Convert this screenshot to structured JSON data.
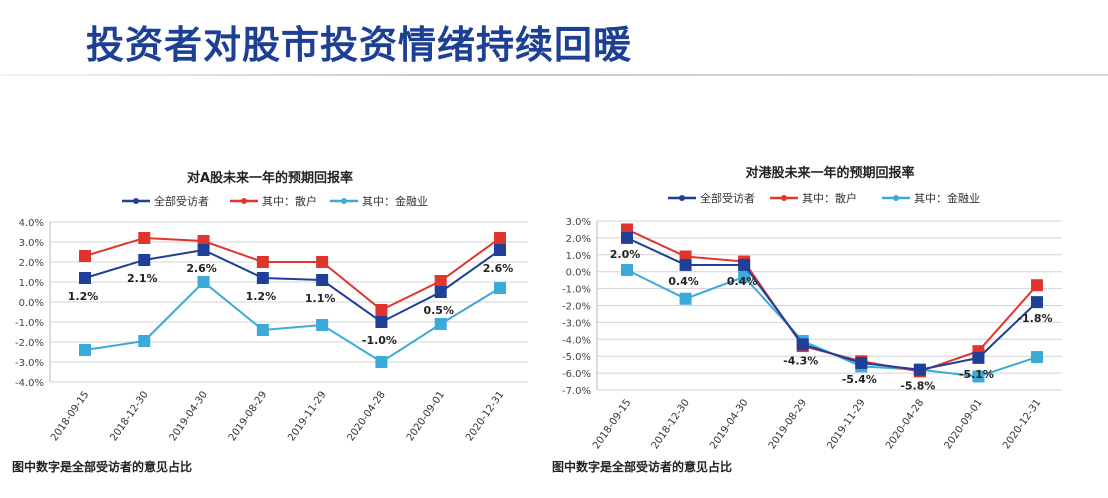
{
  "page_title": "投资者对股市投资情绪持续回暖",
  "chart_data": [
    {
      "type": "line",
      "title": "对A股未来一年的预期回报率",
      "categories": [
        "2018-09-15",
        "2018-12-30",
        "2019-04-30",
        "2019-08-29",
        "2019-11-29",
        "2020-04-28",
        "2020-09-01",
        "2020-12-31"
      ],
      "ylim": [
        -4.0,
        4.0
      ],
      "yticks": [
        "4.0%",
        "3.0%",
        "2.0%",
        "1.0%",
        "0.0%",
        "-1.0%",
        "-2.0%",
        "-3.0%",
        "-4.0%"
      ],
      "grid": true,
      "legend_placement": "top",
      "series": [
        {
          "name": "全部受访者",
          "color": "#1f3f99",
          "values": [
            1.2,
            2.1,
            2.6,
            1.2,
            1.1,
            -1.0,
            0.5,
            2.6
          ]
        },
        {
          "name": "其中：散户",
          "color": "#e0352f",
          "values": [
            2.3,
            3.2,
            3.05,
            2.0,
            2.0,
            -0.4,
            1.05,
            3.2
          ]
        },
        {
          "name": "其中：金融业",
          "color": "#3aaad8",
          "values": [
            -2.4,
            -1.95,
            1.0,
            -1.4,
            -1.15,
            -3.0,
            -1.1,
            0.7
          ]
        }
      ],
      "data_labels": [
        "1.2%",
        "2.1%",
        "2.6%",
        "1.2%",
        "1.1%",
        "-1.0%",
        "0.5%",
        "2.6%"
      ],
      "footnote": "图中数字是全部受访者的意见占比"
    },
    {
      "type": "line",
      "title": "对港股未来一年的预期回报率",
      "categories": [
        "2018-09-15",
        "2018-12-30",
        "2019-04-30",
        "2019-08-29",
        "2019-11-29",
        "2020-04-28",
        "2020-09-01",
        "2020-12-31"
      ],
      "ylim": [
        -7.0,
        3.0
      ],
      "yticks": [
        "3.0%",
        "2.0%",
        "1.0%",
        "0.0%",
        "-1.0%",
        "-2.0%",
        "-3.0%",
        "-4.0%",
        "-5.0%",
        "-6.0%",
        "-7.0%"
      ],
      "grid": true,
      "legend_placement": "top",
      "series": [
        {
          "name": "全部受访者",
          "color": "#1f3f99",
          "values": [
            2.0,
            0.4,
            0.4,
            -4.3,
            -5.4,
            -5.8,
            -5.1,
            -1.8
          ]
        },
        {
          "name": "其中：散户",
          "color": "#e0352f",
          "values": [
            2.5,
            0.9,
            0.6,
            -4.4,
            -5.3,
            -5.9,
            -4.7,
            -0.8
          ]
        },
        {
          "name": "其中：金融业",
          "color": "#3aaad8",
          "values": [
            0.1,
            -1.6,
            -0.3,
            -4.1,
            -5.6,
            -5.8,
            -6.2,
            -5.05
          ]
        }
      ],
      "data_labels": [
        "2.0%",
        "0.4%",
        "0.4%",
        "-4.3%",
        "-5.4%",
        "-5.8%",
        "-5.1%",
        "-1.8%"
      ],
      "footnote": "图中数字是全部受访者的意见占比"
    }
  ]
}
